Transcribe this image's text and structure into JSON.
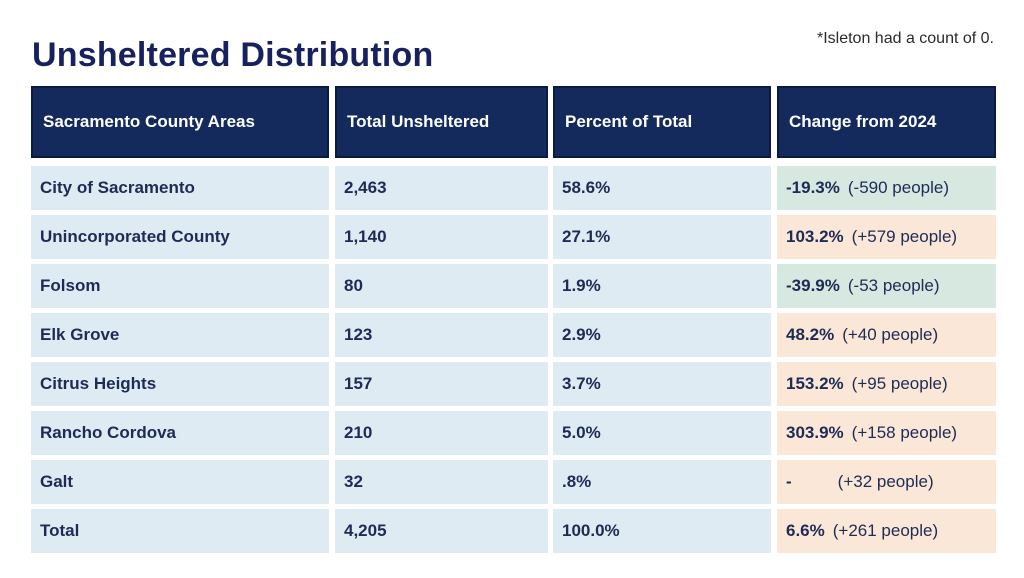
{
  "title": "Unsheltered Distribution",
  "note": "*Isleton had a count of 0.",
  "headers": [
    "Sacramento County Areas",
    "Total Unsheltered",
    "Percent of Total",
    "Change from 2024"
  ],
  "rows": [
    {
      "area": "City of Sacramento",
      "total": "2,463",
      "percent": "58.6%",
      "change_pct": "-19.3%",
      "change_people": "(-590 people)",
      "change_color": "green"
    },
    {
      "area": "Unincorporated County",
      "total": "1,140",
      "percent": "27.1%",
      "change_pct": "103.2%",
      "change_people": "(+579 people)",
      "change_color": "orange"
    },
    {
      "area": "Folsom",
      "total": "80",
      "percent": "1.9%",
      "change_pct": "-39.9%",
      "change_people": "(-53 people)",
      "change_color": "green"
    },
    {
      "area": "Elk Grove",
      "total": "123",
      "percent": "2.9%",
      "change_pct": "48.2%",
      "change_people": "(+40 people)",
      "change_color": "orange"
    },
    {
      "area": "Citrus Heights",
      "total": "157",
      "percent": "3.7%",
      "change_pct": "153.2%",
      "change_people": "(+95 people)",
      "change_color": "orange"
    },
    {
      "area": "Rancho Cordova",
      "total": "210",
      "percent": "5.0%",
      "change_pct": "303.9%",
      "change_people": "(+158 people)",
      "change_color": "orange"
    },
    {
      "area": "Galt",
      "total": "32",
      "percent": ".8%",
      "change_pct": "-",
      "change_people": "(+32 people)",
      "change_color": "orange"
    },
    {
      "area": "Total",
      "total": "4,205",
      "percent": "100.0%",
      "change_pct": "6.6%",
      "change_people": "(+261 people)",
      "change_color": "orange"
    }
  ],
  "colors": {
    "title": "#17215e",
    "header_bg": "#142a5c",
    "cell_light": "#deebf3",
    "change_decrease": "#d6e8e0",
    "change_increase": "#fbe7d8"
  }
}
